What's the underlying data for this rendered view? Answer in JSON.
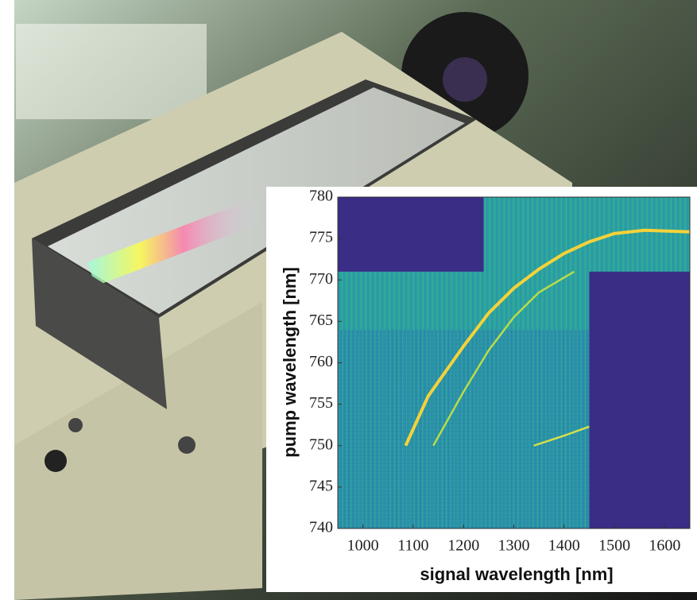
{
  "chart_data": {
    "type": "heatmap",
    "xlabel": "signal wavelength [nm]",
    "ylabel": "pump wavelength [nm]",
    "xlim": [
      950,
      1650
    ],
    "ylim": [
      740,
      780
    ],
    "xticks": [
      1000,
      1100,
      1200,
      1300,
      1400,
      1500,
      1600
    ],
    "yticks": [
      740,
      745,
      750,
      755,
      760,
      765,
      770,
      775,
      780
    ],
    "background_color": "#2fa6a0",
    "masked_color": "#3a2d86",
    "masked_regions": [
      {
        "x": [
          950,
          1240
        ],
        "y": [
          771,
          780
        ]
      },
      {
        "x": [
          1450,
          1650
        ],
        "y": [
          740,
          771
        ]
      }
    ],
    "series": [
      {
        "color": "#f5d23a",
        "x": [
          1085,
          1130,
          1200,
          1250,
          1300,
          1350,
          1400,
          1450,
          1500,
          1560,
          1650
        ],
        "y": [
          750,
          756,
          762,
          766,
          769,
          771.3,
          773.2,
          774.6,
          775.6,
          776,
          775.8
        ]
      },
      {
        "color": "#b7dc4a",
        "x": [
          1140,
          1200,
          1250,
          1300,
          1350,
          1420
        ],
        "y": [
          750,
          756.5,
          761.5,
          765.5,
          768.5,
          771
        ]
      },
      {
        "color": "#d7e04a",
        "x": [
          1340,
          1370,
          1400,
          1450
        ],
        "y": [
          750,
          750.6,
          751.2,
          752.3
        ]
      }
    ]
  }
}
